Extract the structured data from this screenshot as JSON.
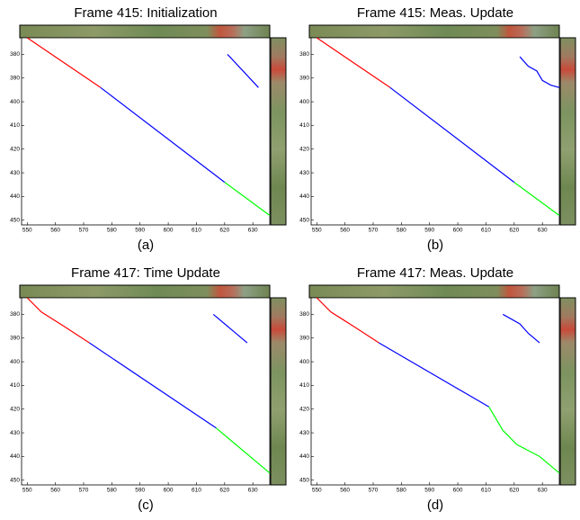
{
  "chart_data": [
    {
      "type": "line",
      "title": "Frame 415: Initialization",
      "caption": "(a)",
      "xlim": [
        548,
        636
      ],
      "ylim": [
        452,
        373
      ],
      "xticks": [
        550,
        560,
        570,
        580,
        590,
        600,
        610,
        620,
        630
      ],
      "yticks": [
        380,
        390,
        400,
        410,
        420,
        430,
        440,
        450
      ],
      "series": [
        {
          "color": "#ff0000",
          "x": [
            550,
            576
          ],
          "values": [
            373,
            394
          ]
        },
        {
          "color": "#0000ff",
          "x": [
            576,
            620
          ],
          "values": [
            394,
            434
          ]
        },
        {
          "color": "#00ff00",
          "x": [
            620,
            636
          ],
          "values": [
            434,
            448
          ]
        },
        {
          "color": "#0000ff",
          "x": [
            621,
            632
          ],
          "values": [
            380,
            394
          ]
        }
      ]
    },
    {
      "type": "line",
      "title": "Frame 415: Meas. Update",
      "caption": "(b)",
      "xlim": [
        548,
        636
      ],
      "ylim": [
        452,
        373
      ],
      "xticks": [
        550,
        560,
        570,
        580,
        590,
        600,
        610,
        620,
        630
      ],
      "yticks": [
        380,
        390,
        400,
        410,
        420,
        430,
        440,
        450
      ],
      "series": [
        {
          "color": "#ff0000",
          "x": [
            550,
            576
          ],
          "values": [
            373,
            394
          ]
        },
        {
          "color": "#0000ff",
          "x": [
            576,
            620
          ],
          "values": [
            394,
            434
          ]
        },
        {
          "color": "#00ff00",
          "x": [
            620,
            636
          ],
          "values": [
            434,
            448
          ]
        },
        {
          "color": "#0000ff",
          "x": [
            622,
            625,
            628,
            630,
            633,
            636
          ],
          "values": [
            381,
            385,
            387,
            391,
            393,
            394
          ]
        }
      ]
    },
    {
      "type": "line",
      "title": "Frame 417: Time Update",
      "caption": "(c)",
      "xlim": [
        548,
        636
      ],
      "ylim": [
        452,
        373
      ],
      "xticks": [
        550,
        560,
        570,
        580,
        590,
        600,
        610,
        620,
        630
      ],
      "yticks": [
        380,
        390,
        400,
        410,
        420,
        430,
        440,
        450
      ],
      "series": [
        {
          "color": "#ff0000",
          "x": [
            550,
            555,
            563,
            572
          ],
          "values": [
            373,
            379,
            385,
            392
          ]
        },
        {
          "color": "#0000ff",
          "x": [
            572,
            617
          ],
          "values": [
            392,
            428
          ]
        },
        {
          "color": "#00ff00",
          "x": [
            617,
            636
          ],
          "values": [
            428,
            447
          ]
        },
        {
          "color": "#0000ff",
          "x": [
            616,
            628
          ],
          "values": [
            380,
            392
          ]
        }
      ]
    },
    {
      "type": "line",
      "title": "Frame 417: Meas. Update",
      "caption": "(d)",
      "xlim": [
        548,
        636
      ],
      "ylim": [
        452,
        373
      ],
      "xticks": [
        550,
        560,
        570,
        580,
        590,
        600,
        610,
        620,
        630
      ],
      "yticks": [
        380,
        390,
        400,
        410,
        420,
        430,
        440,
        450
      ],
      "series": [
        {
          "color": "#ff0000",
          "x": [
            550,
            555,
            563,
            572
          ],
          "values": [
            373,
            379,
            385,
            392
          ]
        },
        {
          "color": "#0000ff",
          "x": [
            572,
            611
          ],
          "values": [
            392,
            419
          ]
        },
        {
          "color": "#00ff00",
          "x": [
            611,
            616,
            621,
            629,
            636
          ],
          "values": [
            419,
            429,
            435,
            440,
            447
          ]
        },
        {
          "color": "#0000ff",
          "x": [
            616,
            622,
            625,
            629
          ],
          "values": [
            380,
            384,
            388,
            392
          ]
        }
      ]
    }
  ]
}
